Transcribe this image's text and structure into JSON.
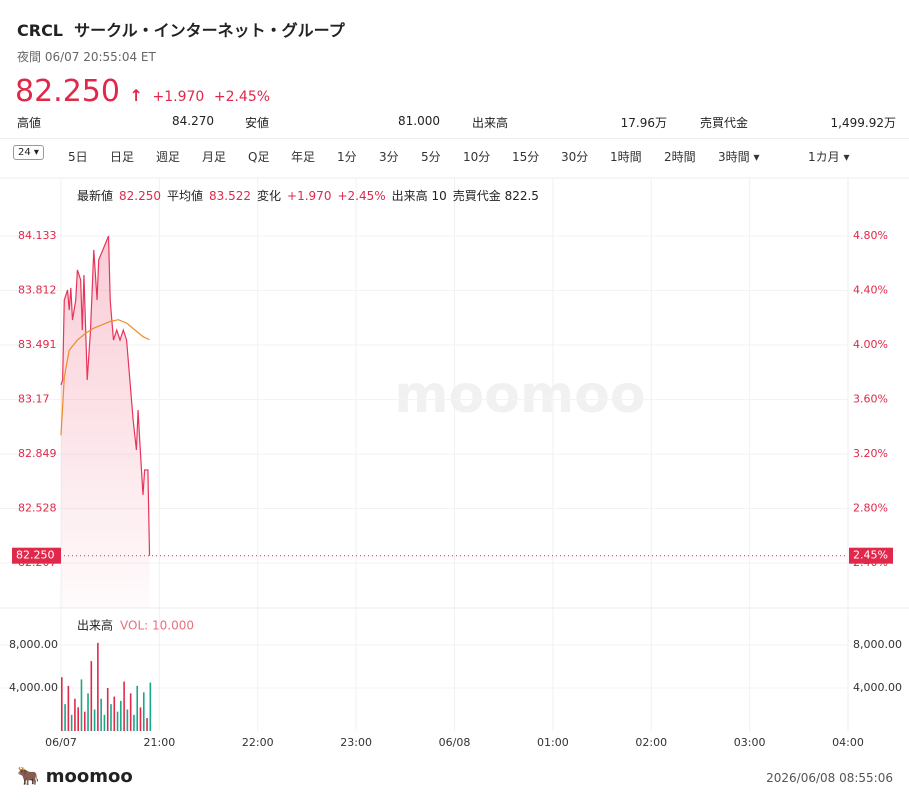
{
  "header": {
    "ticker": "CRCL",
    "name": "サークル・インターネット・グループ",
    "session": "夜間 06/07 20:55:04 ET",
    "price": "82.250",
    "arrow": "↑",
    "change": "+1.970",
    "change_pct": "+2.45%"
  },
  "stats": [
    {
      "label": "高値",
      "value": "84.270"
    },
    {
      "label": "安値",
      "value": "81.000"
    },
    {
      "label": "出来高",
      "value": "17.96万"
    },
    {
      "label": "売買代金",
      "value": "1,499.92万"
    }
  ],
  "toolbar": {
    "icon": "24",
    "tabs": [
      "5日",
      "日足",
      "週足",
      "月足",
      "Q足",
      "年足",
      "1分",
      "3分",
      "5分",
      "10分",
      "15分",
      "30分",
      "1時間",
      "2時間",
      "3時間 ▾",
      "1カ月 ▾"
    ]
  },
  "info": [
    {
      "text": "最新値"
    },
    {
      "text": "82.250",
      "color": "#e0294a"
    },
    {
      "text": "平均値"
    },
    {
      "text": "83.522",
      "color": "#e0294a"
    },
    {
      "text": "変化"
    },
    {
      "text": "+1.970",
      "color": "#e0294a"
    },
    {
      "text": "+2.45%",
      "color": "#e0294a"
    },
    {
      "text": "出来高 10"
    },
    {
      "text": "売買代金 822.5"
    }
  ],
  "chart_data": [
    {
      "type": "line",
      "watermark": "moomoo",
      "last_label": "82.250",
      "last_pct_label": "2.45%",
      "xlim": [
        0,
        480
      ],
      "xticks": [
        {
          "value": 0,
          "label": "06/07"
        },
        {
          "value": 60,
          "label": "21:00"
        },
        {
          "value": 120,
          "label": "22:00"
        },
        {
          "value": 180,
          "label": "23:00"
        },
        {
          "value": 240,
          "label": "06/08"
        },
        {
          "value": 300,
          "label": "01:00"
        },
        {
          "value": 360,
          "label": "02:00"
        },
        {
          "value": 420,
          "label": "03:00"
        },
        {
          "value": 480,
          "label": "04:00"
        }
      ],
      "ylim": [
        82.207,
        84.133
      ],
      "yticks": [
        82.207,
        82.528,
        82.849,
        83.17,
        83.491,
        83.812,
        84.133
      ],
      "y2lim": [
        2.4,
        4.8
      ],
      "y2ticks": [
        {
          "value": 2.4,
          "label": "2.40%"
        },
        {
          "value": 2.8,
          "label": "2.80%"
        },
        {
          "value": 3.2,
          "label": "3.20%"
        },
        {
          "value": 3.6,
          "label": "3.60%"
        },
        {
          "value": 4.0,
          "label": "4.00%"
        },
        {
          "value": 4.4,
          "label": "4.40%"
        },
        {
          "value": 4.8,
          "label": "4.80%"
        }
      ],
      "series": [
        {
          "color": "#e8345a",
          "x": [
            0,
            1,
            2,
            4,
            5,
            6,
            7,
            9,
            10,
            12,
            13,
            14,
            16,
            18,
            20,
            22,
            23,
            29,
            30,
            32,
            34,
            36,
            38,
            40,
            42,
            44,
            46,
            47,
            48,
            50,
            51,
            53,
            54
          ],
          "values": [
            83.255,
            83.285,
            83.756,
            83.815,
            83.697,
            83.827,
            83.638,
            83.756,
            83.933,
            83.874,
            83.579,
            83.903,
            83.285,
            83.579,
            84.051,
            83.756,
            83.992,
            84.133,
            83.756,
            83.52,
            83.579,
            83.52,
            83.579,
            83.52,
            83.285,
            83.049,
            82.873,
            83.108,
            82.931,
            82.608,
            82.755,
            82.755,
            82.25
          ]
        },
        {
          "color": "#f08c28",
          "x": [
            0,
            2,
            5,
            10,
            15,
            20,
            25,
            30,
            35,
            40,
            45,
            50,
            54
          ],
          "values": [
            82.96,
            83.3,
            83.46,
            83.52,
            83.56,
            83.59,
            83.61,
            83.63,
            83.64,
            83.62,
            83.58,
            83.54,
            83.522
          ]
        }
      ]
    },
    {
      "type": "bar",
      "title": "出来高",
      "subtitle": "VOL: 10.000",
      "ylim": [
        0,
        8000
      ],
      "yticks": [
        {
          "value": 4000,
          "label": "4,000.00"
        },
        {
          "value": 8000,
          "label": "8,000.00"
        }
      ],
      "x": [
        0,
        2,
        4,
        6,
        8,
        10,
        12,
        14,
        16,
        18,
        20,
        22,
        24,
        26,
        28,
        30,
        32,
        34,
        36,
        38,
        40,
        42,
        44,
        46,
        48,
        50,
        52,
        54
      ],
      "values": [
        5000,
        2500,
        4200,
        1500,
        3000,
        2200,
        4800,
        1800,
        3500,
        6500,
        2000,
        8200,
        3000,
        1500,
        4000,
        2500,
        3200,
        1800,
        2800,
        4600,
        2000,
        3500,
        1500,
        4200,
        2200,
        3600,
        1200,
        4500
      ],
      "colors": [
        "#e0294a",
        "#1aa68a",
        "#e0294a",
        "#1aa68a",
        "#e0294a",
        "#e0294a",
        "#1aa68a",
        "#e0294a",
        "#1aa68a",
        "#e0294a",
        "#1aa68a",
        "#e0294a",
        "#1aa68a",
        "#1aa68a",
        "#e0294a",
        "#1aa68a",
        "#e0294a",
        "#1aa68a",
        "#1aa68a",
        "#e0294a",
        "#1aa68a",
        "#e0294a",
        "#1aa68a",
        "#1aa68a",
        "#e0294a",
        "#1aa68a",
        "#e0294a",
        "#1aa68a"
      ]
    }
  ],
  "footer": {
    "brand": "moomoo",
    "timestamp": "2026/06/08 08:55:06"
  }
}
